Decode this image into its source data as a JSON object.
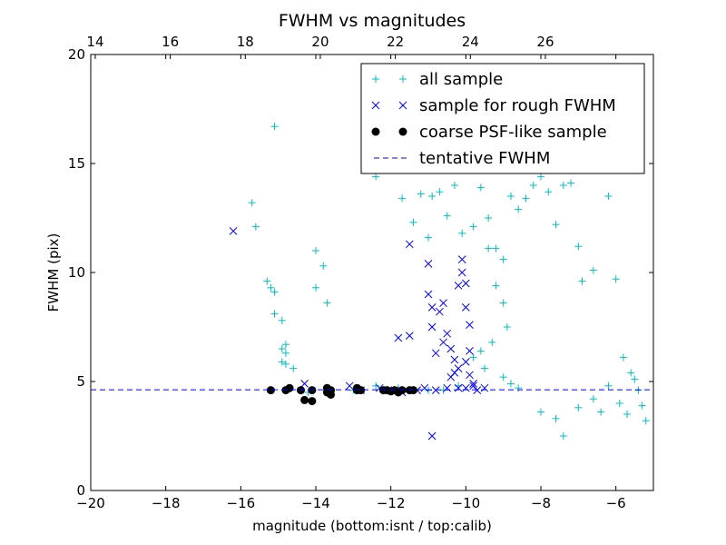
{
  "chart_data": {
    "type": "scatter",
    "title": "FWHM vs magnitudes",
    "xlabel": "magnitude (bottom:isnt / top:calib)",
    "ylabel": "FWHM (pix)",
    "xlim": [
      -20,
      -5
    ],
    "ylim": [
      0,
      20
    ],
    "x_ticks": [
      -20,
      -18,
      -16,
      -14,
      -12,
      -10,
      -8,
      -6
    ],
    "x_tick_labels": [
      "−20",
      "−18",
      "−16",
      "−14",
      "−12",
      "−10",
      "−8",
      "−6"
    ],
    "y_ticks": [
      0,
      5,
      10,
      15,
      20
    ],
    "y_tick_labels": [
      "0",
      "5",
      "10",
      "15",
      "20"
    ],
    "top_axis": {
      "ticks": [
        14,
        16,
        18,
        20,
        22,
        24,
        26
      ],
      "tick_labels": [
        "14",
        "16",
        "18",
        "20",
        "22",
        "24",
        "26"
      ],
      "offset": 33.88
    },
    "legend_position": "top-right",
    "grid": false,
    "series": [
      {
        "name": "all sample",
        "marker": "plus",
        "color": "#00bfbf",
        "points": [
          [
            -15.1,
            16.7
          ],
          [
            -15.7,
            13.2
          ],
          [
            -15.6,
            12.1
          ],
          [
            -15.3,
            9.6
          ],
          [
            -15.2,
            9.3
          ],
          [
            -15.1,
            9.1
          ],
          [
            -15.1,
            8.1
          ],
          [
            -14.9,
            7.8
          ],
          [
            -14.8,
            6.7
          ],
          [
            -14.9,
            6.5
          ],
          [
            -14.8,
            6.3
          ],
          [
            -14.9,
            5.9
          ],
          [
            -14.8,
            5.8
          ],
          [
            -14.6,
            5.6
          ],
          [
            -14.0,
            11.0
          ],
          [
            -13.8,
            10.3
          ],
          [
            -14.0,
            9.3
          ],
          [
            -13.7,
            8.6
          ],
          [
            -12.6,
            17.1
          ],
          [
            -12.4,
            14.4
          ],
          [
            -11.9,
            15.4
          ],
          [
            -11.7,
            13.4
          ],
          [
            -11.4,
            12.3
          ],
          [
            -11.2,
            13.6
          ],
          [
            -11.0,
            11.6
          ],
          [
            -10.9,
            13.5
          ],
          [
            -10.7,
            13.7
          ],
          [
            -10.5,
            12.6
          ],
          [
            -10.3,
            14.0
          ],
          [
            -10.1,
            11.8
          ],
          [
            -9.8,
            12.1
          ],
          [
            -9.6,
            13.9
          ],
          [
            -9.4,
            12.5
          ],
          [
            -9.2,
            11.1
          ],
          [
            -9.0,
            10.6
          ],
          [
            -8.8,
            13.5
          ],
          [
            -8.6,
            12.9
          ],
          [
            -8.4,
            13.4
          ],
          [
            -8.2,
            14.0
          ],
          [
            -8.0,
            14.4
          ],
          [
            -7.8,
            13.7
          ],
          [
            -7.6,
            12.2
          ],
          [
            -7.4,
            14.0
          ],
          [
            -7.2,
            14.1
          ],
          [
            -7.0,
            11.2
          ],
          [
            -6.9,
            9.6
          ],
          [
            -6.6,
            10.1
          ],
          [
            -6.2,
            13.5
          ],
          [
            -6.0,
            9.7
          ],
          [
            -5.8,
            6.1
          ],
          [
            -5.6,
            5.4
          ],
          [
            -5.5,
            5.1
          ],
          [
            -5.4,
            4.6
          ],
          [
            -5.3,
            3.9
          ],
          [
            -5.2,
            3.2
          ],
          [
            -5.7,
            3.5
          ],
          [
            -5.9,
            4.0
          ],
          [
            -6.2,
            4.8
          ],
          [
            -6.4,
            3.6
          ],
          [
            -6.6,
            4.2
          ],
          [
            -7.0,
            3.8
          ],
          [
            -7.4,
            2.5
          ],
          [
            -7.6,
            3.3
          ],
          [
            -8.0,
            3.6
          ],
          [
            -9.4,
            11.1
          ],
          [
            -9.2,
            9.4
          ],
          [
            -9.0,
            8.6
          ],
          [
            -8.9,
            7.5
          ],
          [
            -9.3,
            6.8
          ],
          [
            -9.6,
            6.4
          ],
          [
            -9.8,
            6.1
          ],
          [
            -9.5,
            5.6
          ],
          [
            -10.2,
            4.8
          ],
          [
            -10.6,
            4.6
          ],
          [
            -11.0,
            4.6
          ],
          [
            -11.8,
            4.7
          ],
          [
            -12.4,
            4.8
          ],
          [
            -13.0,
            4.6
          ],
          [
            -14.2,
            4.5
          ],
          [
            -9.0,
            5.2
          ],
          [
            -8.8,
            4.9
          ],
          [
            -8.6,
            4.7
          ]
        ]
      },
      {
        "name": "sample for rough FWHM",
        "marker": "x",
        "color": "#0000ff",
        "points": [
          [
            -16.2,
            11.9
          ],
          [
            -14.3,
            4.9
          ],
          [
            -13.1,
            4.8
          ],
          [
            -12.8,
            4.6
          ],
          [
            -12.3,
            4.7
          ],
          [
            -11.9,
            4.6
          ],
          [
            -11.7,
            4.5
          ],
          [
            -11.3,
            4.6
          ],
          [
            -11.1,
            4.7
          ],
          [
            -10.8,
            4.6
          ],
          [
            -10.5,
            4.7
          ],
          [
            -10.2,
            4.7
          ],
          [
            -10.0,
            4.7
          ],
          [
            -9.8,
            4.8
          ],
          [
            -11.5,
            11.3
          ],
          [
            -11.5,
            7.1
          ],
          [
            -11.8,
            7.0
          ],
          [
            -11.0,
            10.4
          ],
          [
            -11.0,
            9.0
          ],
          [
            -10.9,
            8.4
          ],
          [
            -10.9,
            7.5
          ],
          [
            -10.8,
            6.3
          ],
          [
            -10.6,
            6.8
          ],
          [
            -10.5,
            7.2
          ],
          [
            -10.4,
            6.5
          ],
          [
            -10.3,
            6.0
          ],
          [
            -10.2,
            9.4
          ],
          [
            -10.1,
            10.6
          ],
          [
            -10.1,
            10.0
          ],
          [
            -10.0,
            9.5
          ],
          [
            -10.0,
            8.4
          ],
          [
            -9.9,
            7.6
          ],
          [
            -9.9,
            6.4
          ],
          [
            -10.0,
            5.9
          ],
          [
            -10.2,
            5.6
          ],
          [
            -10.3,
            5.4
          ],
          [
            -10.4,
            5.2
          ],
          [
            -9.9,
            5.3
          ],
          [
            -9.8,
            4.9
          ],
          [
            -10.6,
            8.6
          ],
          [
            -10.9,
            2.5
          ],
          [
            -9.5,
            4.7
          ],
          [
            -9.7,
            4.6
          ],
          [
            -10.7,
            8.2
          ]
        ]
      },
      {
        "name": "coarse PSF-like sample",
        "marker": "circle",
        "color": "#000000",
        "points": [
          [
            -15.2,
            4.6
          ],
          [
            -14.8,
            4.6
          ],
          [
            -14.7,
            4.7
          ],
          [
            -14.4,
            4.6
          ],
          [
            -14.3,
            4.15
          ],
          [
            -14.1,
            4.1
          ],
          [
            -14.1,
            4.6
          ],
          [
            -13.7,
            4.7
          ],
          [
            -13.6,
            4.6
          ],
          [
            -13.6,
            4.4
          ],
          [
            -13.7,
            4.5
          ],
          [
            -12.9,
            4.6
          ],
          [
            -12.8,
            4.6
          ],
          [
            -12.9,
            4.7
          ],
          [
            -12.2,
            4.6
          ],
          [
            -12.1,
            4.6
          ],
          [
            -12.0,
            4.55
          ],
          [
            -11.9,
            4.6
          ],
          [
            -11.8,
            4.5
          ],
          [
            -11.7,
            4.6
          ],
          [
            -11.5,
            4.6
          ],
          [
            -11.4,
            4.6
          ]
        ]
      },
      {
        "name": "tentative FWHM",
        "marker": "dashed-line",
        "color": "#0000ff",
        "y_value": 4.62
      }
    ]
  }
}
